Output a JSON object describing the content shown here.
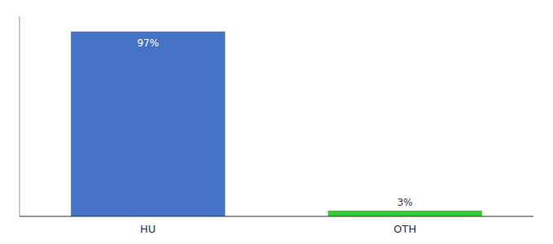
{
  "chart_data": {
    "type": "bar",
    "categories": [
      "HU",
      "OTH"
    ],
    "values": [
      97,
      3
    ],
    "value_labels": [
      "97%",
      "3%"
    ],
    "colors": [
      "#4472c4",
      "#33cc33"
    ],
    "ylim": [
      0,
      105
    ],
    "data_labels": true,
    "tick_labels": "x",
    "grid": false
  }
}
